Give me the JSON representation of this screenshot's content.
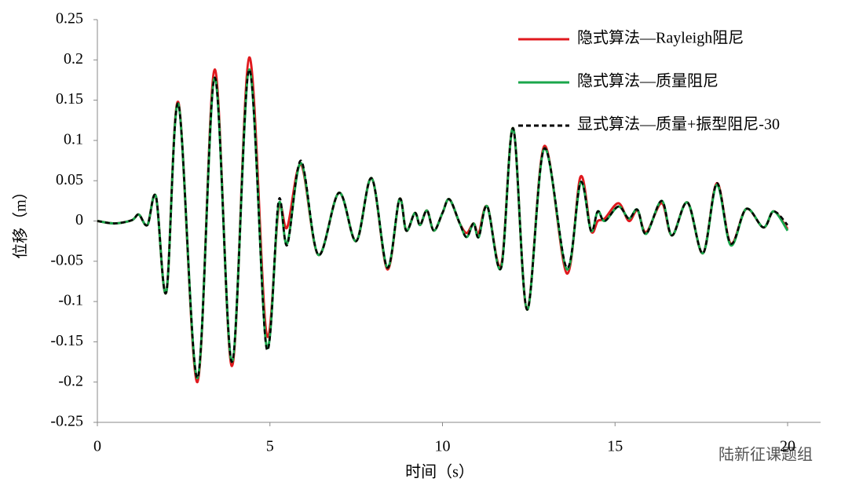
{
  "chart_data": {
    "type": "line",
    "xlabel": "时间（s）",
    "ylabel": "位移（m）",
    "watermark": "陆新征课题组",
    "xlim": [
      0,
      21
    ],
    "ylim": [
      -0.25,
      0.25
    ],
    "xticks": [
      0,
      5,
      10,
      15,
      20
    ],
    "yticks": [
      0.25,
      0.2,
      0.15,
      0.1,
      0.05,
      0,
      -0.05,
      -0.1,
      -0.15,
      -0.2,
      -0.25
    ],
    "x": [
      0,
      0.5,
      1,
      1.2,
      1.45,
      1.7,
      2.0,
      2.35,
      2.9,
      3.4,
      3.9,
      4.4,
      4.9,
      5.25,
      5.5,
      5.9,
      6.4,
      7.0,
      7.5,
      7.95,
      8.4,
      8.75,
      8.95,
      9.2,
      9.35,
      9.55,
      9.75,
      10.0,
      10.2,
      10.5,
      10.7,
      10.9,
      11.05,
      11.3,
      11.7,
      12.05,
      12.45,
      12.95,
      13.6,
      14.0,
      14.3,
      14.5,
      14.7,
      15.1,
      15.4,
      15.65,
      15.9,
      16.35,
      16.65,
      17.1,
      17.55,
      17.95,
      18.35,
      18.8,
      19.3,
      19.6,
      20
    ],
    "series": [
      {
        "name": "隐式算法—Rayleigh阻尼",
        "color": "#e0191e",
        "dash": false,
        "values": [
          0,
          -0.003,
          0.001,
          0.008,
          -0.005,
          0.03,
          -0.088,
          0.147,
          -0.2,
          0.188,
          -0.18,
          0.203,
          -0.14,
          0.015,
          -0.008,
          0.07,
          -0.042,
          0.035,
          -0.025,
          0.053,
          -0.06,
          0.027,
          -0.012,
          0.01,
          -0.005,
          0.013,
          -0.012,
          0.01,
          0.027,
          -0.003,
          -0.015,
          -0.003,
          -0.015,
          0.018,
          -0.055,
          0.115,
          -0.11,
          0.093,
          -0.065,
          0.055,
          -0.012,
          0.0,
          0.003,
          0.022,
          0.0,
          0.013,
          -0.014,
          0.022,
          -0.018,
          0.023,
          -0.04,
          0.047,
          -0.028,
          0.015,
          -0.008,
          0.012,
          -0.01
        ]
      },
      {
        "name": "隐式算法—质量阻尼",
        "color": "#1aa64b",
        "dash": false,
        "values": [
          0,
          -0.003,
          0.001,
          0.008,
          -0.005,
          0.03,
          -0.088,
          0.145,
          -0.195,
          0.178,
          -0.175,
          0.188,
          -0.155,
          0.02,
          -0.028,
          0.072,
          -0.042,
          0.035,
          -0.025,
          0.053,
          -0.058,
          0.027,
          -0.012,
          0.01,
          -0.005,
          0.013,
          -0.012,
          0.01,
          0.027,
          -0.003,
          -0.02,
          -0.003,
          -0.02,
          0.018,
          -0.058,
          0.115,
          -0.11,
          0.09,
          -0.06,
          0.048,
          -0.012,
          0.012,
          0.0,
          0.018,
          0.003,
          0.014,
          -0.016,
          0.025,
          -0.018,
          0.023,
          -0.04,
          0.045,
          -0.03,
          0.015,
          -0.008,
          0.012,
          -0.012
        ]
      },
      {
        "name": "显式算法—质量+振型阻尼-30",
        "color": "#000000",
        "dash": true,
        "values": [
          0,
          -0.003,
          0.001,
          0.008,
          -0.005,
          0.03,
          -0.088,
          0.145,
          -0.195,
          0.178,
          -0.175,
          0.188,
          -0.158,
          0.025,
          -0.03,
          0.075,
          -0.042,
          0.035,
          -0.025,
          0.053,
          -0.058,
          0.027,
          -0.012,
          0.01,
          -0.005,
          0.013,
          -0.012,
          0.01,
          0.027,
          -0.003,
          -0.02,
          -0.003,
          -0.02,
          0.018,
          -0.058,
          0.115,
          -0.11,
          0.09,
          -0.058,
          0.048,
          -0.012,
          0.012,
          0.0,
          0.018,
          0.003,
          0.014,
          -0.016,
          0.025,
          -0.018,
          0.023,
          -0.04,
          0.047,
          -0.028,
          0.015,
          -0.008,
          0.012,
          -0.005
        ]
      }
    ]
  }
}
